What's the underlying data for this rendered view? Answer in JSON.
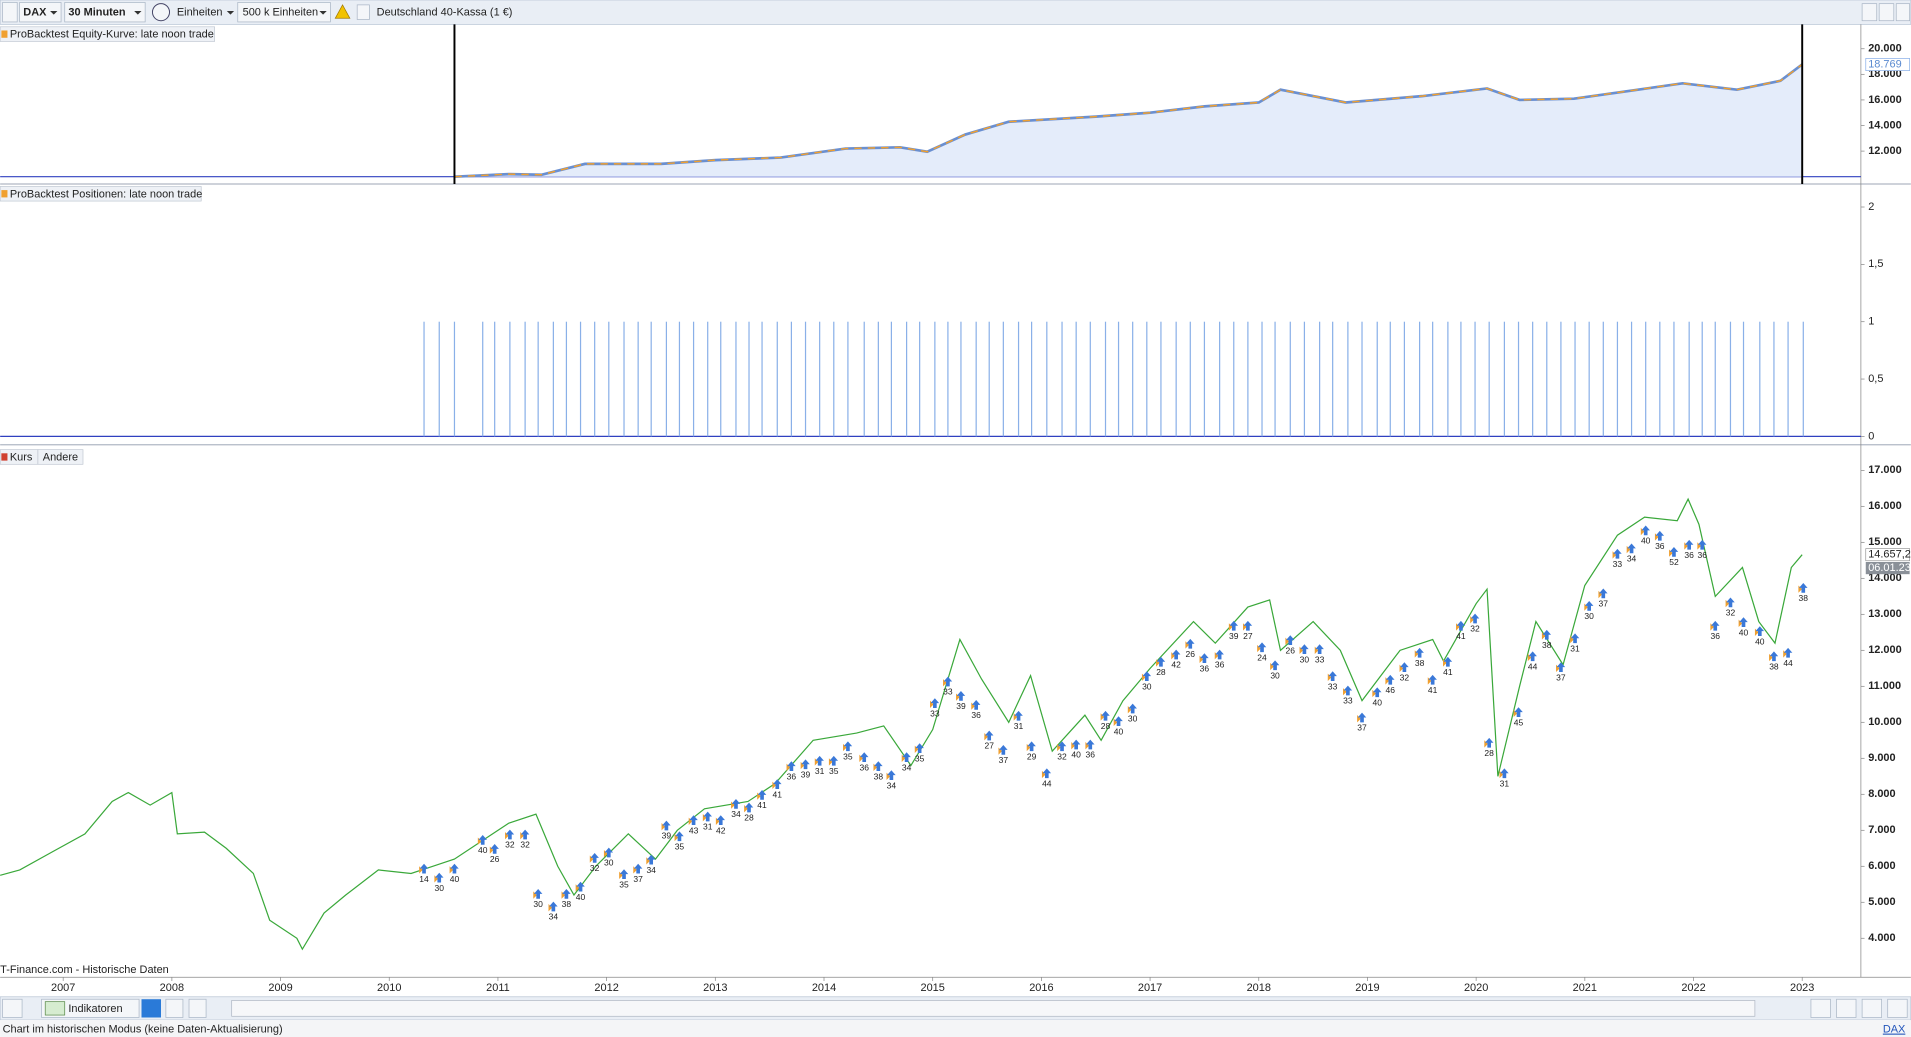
{
  "toolbar": {
    "symbol": "DAX",
    "interval": "30 Minuten",
    "units": "Einheiten",
    "amount": "500 k Einheiten",
    "instrument": "Deutschland 40-Kassa (1 €)"
  },
  "time_axis": {
    "xlim": [
      2006.42,
      2023.54
    ],
    "xticks": [
      2007,
      2008,
      2009,
      2010,
      2011,
      2012,
      2013,
      2014,
      2015,
      2016,
      2017,
      2018,
      2019,
      2020,
      2021,
      2022,
      2023
    ]
  },
  "chart_data": [
    {
      "type": "area",
      "title": "ProBacktest Equity-Kurve: late noon trade",
      "color": "#f0a030",
      "line2": "#6a8fd0",
      "fill": "#e4ecfa",
      "x": [
        2010.6,
        2011.1,
        2011.4,
        2011.8,
        2012.5,
        2013.0,
        2013.6,
        2014.2,
        2014.7,
        2014.95,
        2015.3,
        2015.7,
        2016.5,
        2017.0,
        2017.5,
        2018.0,
        2018.2,
        2018.8,
        2019.5,
        2020.1,
        2020.4,
        2020.9,
        2021.4,
        2021.9,
        2022.4,
        2022.8,
        2023.0
      ],
      "values": [
        10000,
        10200,
        10150,
        11000,
        11000,
        11300,
        11500,
        12200,
        12300,
        11950,
        13300,
        14300,
        14700,
        15000,
        15500,
        15800,
        16800,
        15800,
        16300,
        16900,
        16000,
        16100,
        16700,
        17300,
        16800,
        17500,
        18769
      ],
      "ylim": [
        9524,
        21905
      ],
      "yticks": [
        {
          "value": 12000,
          "label": "12.000"
        },
        {
          "value": 14000,
          "label": "14.000"
        },
        {
          "value": 16000,
          "label": "16.000"
        },
        {
          "value": 18000,
          "label": "18.000"
        },
        {
          "value": 20000,
          "label": "20.000"
        }
      ],
      "current": {
        "value": 18769,
        "label": "18.769"
      }
    },
    {
      "type": "bar",
      "title": "ProBacktest Positionen: late noon trade",
      "color": "#8ab0e8",
      "level": 1,
      "ylim": [
        -0.02,
        2.19
      ],
      "yticks": [
        0,
        {
          "value": 0.5,
          "label": "0,5"
        },
        1,
        {
          "value": 1.5,
          "label": "1,5"
        },
        2
      ]
    },
    {
      "type": "line",
      "title": "Kurs",
      "tab": "Andere",
      "color": "#3aa83a",
      "source": "T-Finance.com - Historische Daten",
      "x": [
        2006.42,
        2006.6,
        2006.9,
        2007.2,
        2007.45,
        2007.6,
        2007.8,
        2008.0,
        2008.05,
        2008.3,
        2008.5,
        2008.75,
        2008.9,
        2009.15,
        2009.2,
        2009.4,
        2009.6,
        2009.9,
        2010.2,
        2010.4,
        2010.6,
        2010.9,
        2011.1,
        2011.35,
        2011.55,
        2011.7,
        2011.9,
        2012.2,
        2012.45,
        2012.65,
        2012.9,
        2013.3,
        2013.55,
        2013.9,
        2014.3,
        2014.55,
        2014.8,
        2015.0,
        2015.25,
        2015.45,
        2015.7,
        2015.9,
        2016.1,
        2016.4,
        2016.55,
        2016.75,
        2017.0,
        2017.4,
        2017.6,
        2017.9,
        2018.1,
        2018.2,
        2018.5,
        2018.75,
        2018.95,
        2019.3,
        2019.6,
        2019.7,
        2020.0,
        2020.1,
        2020.2,
        2020.4,
        2020.55,
        2020.8,
        2021.0,
        2021.3,
        2021.55,
        2021.85,
        2021.95,
        2022.05,
        2022.2,
        2022.45,
        2022.6,
        2022.75,
        2022.9,
        2023.0
      ],
      "values": [
        5750,
        5900,
        6400,
        6900,
        7800,
        8050,
        7700,
        8050,
        6900,
        6950,
        6500,
        5800,
        4500,
        4000,
        3700,
        4700,
        5200,
        5900,
        5800,
        6000,
        6200,
        6800,
        7200,
        7450,
        6000,
        5200,
        6000,
        6900,
        6200,
        7000,
        7600,
        7800,
        8300,
        9500,
        9700,
        9900,
        8800,
        9800,
        12300,
        11200,
        10000,
        11300,
        9200,
        10200,
        9500,
        10600,
        11500,
        12800,
        12200,
        13200,
        13400,
        12000,
        12800,
        12000,
        10600,
        12000,
        12300,
        11700,
        13300,
        13700,
        8500,
        11000,
        12800,
        11600,
        13800,
        15200,
        15700,
        15600,
        16200,
        15500,
        13500,
        14300,
        12800,
        12200,
        14300,
        14657
      ],
      "ylim": [
        2984,
        17609
      ],
      "yticks": [
        {
          "value": 4000,
          "label": "4.000"
        },
        {
          "value": 5000,
          "label": "5.000"
        },
        {
          "value": 6000,
          "label": "6.000"
        },
        {
          "value": 7000,
          "label": "7.000"
        },
        {
          "value": 8000,
          "label": "8.000"
        },
        {
          "value": 9000,
          "label": "9.000"
        },
        {
          "value": 10000,
          "label": "10.000"
        },
        {
          "value": 11000,
          "label": "11.000"
        },
        {
          "value": 12000,
          "label": "12.000"
        },
        {
          "value": 13000,
          "label": "13.000"
        },
        {
          "value": 14000,
          "label": "14.000"
        },
        {
          "value": 15000,
          "label": "15.000"
        },
        {
          "value": 16000,
          "label": "16.000"
        },
        {
          "value": 17000,
          "label": "17.000"
        }
      ],
      "current": {
        "value": 14657.2,
        "label": "14.657,2",
        "date": "06.01.23"
      },
      "trades": {
        "t": [
          2010.32,
          2010.46,
          2010.6,
          2010.86,
          2010.97,
          2011.11,
          2011.25,
          2011.37,
          2011.51,
          2011.63,
          2011.76,
          2011.89,
          2012.02,
          2012.16,
          2012.29,
          2012.41,
          2012.55,
          2012.67,
          2012.8,
          2012.93,
          2013.05,
          2013.19,
          2013.31,
          2013.43,
          2013.57,
          2013.7,
          2013.83,
          2013.96,
          2014.09,
          2014.22,
          2014.37,
          2014.5,
          2014.62,
          2014.76,
          2014.88,
          2015.02,
          2015.14,
          2015.26,
          2015.4,
          2015.52,
          2015.65,
          2015.79,
          2015.91,
          2016.05,
          2016.19,
          2016.32,
          2016.45,
          2016.59,
          2016.71,
          2016.84,
          2016.97,
          2017.1,
          2017.24,
          2017.37,
          2017.5,
          2017.64,
          2017.77,
          2017.9,
          2018.03,
          2018.15,
          2018.29,
          2018.42,
          2018.56,
          2018.68,
          2018.82,
          2018.95,
          2019.09,
          2019.21,
          2019.34,
          2019.48,
          2019.6,
          2019.74,
          2019.86,
          2019.99,
          2020.12,
          2020.26,
          2020.39,
          2020.52,
          2020.65,
          2020.78,
          2020.91,
          2021.04,
          2021.17,
          2021.3,
          2021.43,
          2021.56,
          2021.69,
          2021.82,
          2021.96,
          2022.08,
          2022.2,
          2022.34,
          2022.46,
          2022.61,
          2022.74,
          2022.87,
          2023.01
        ],
        "price": [
          5900,
          5650,
          5900,
          6700,
          6450,
          6850,
          6850,
          5200,
          4850,
          5200,
          5400,
          6200,
          6350,
          5750,
          5900,
          6150,
          7100,
          6800,
          7250,
          7350,
          7250,
          7700,
          7600,
          7950,
          8250,
          8750,
          8800,
          8900,
          8900,
          9300,
          9000,
          8750,
          8500,
          9000,
          9250,
          10500,
          11100,
          10700,
          10450,
          9600,
          9200,
          10150,
          9300,
          8550,
          9300,
          9350,
          9350,
          10150,
          10000,
          10350,
          11250,
          11650,
          11850,
          12150,
          11750,
          11850,
          12650,
          12650,
          12050,
          11550,
          12250,
          12000,
          12000,
          11250,
          10850,
          10100,
          10800,
          11150,
          11500,
          11900,
          11150,
          11650,
          12650,
          12850,
          9400,
          8550,
          10250,
          11800,
          12400,
          11500,
          12300,
          13200,
          13550,
          14650,
          14800,
          15300,
          15150,
          14700,
          14900,
          14900,
          12650,
          13300,
          12750,
          12500,
          11800,
          11900,
          13700
        ],
        "labels": [
          "14",
          "30",
          "40",
          "40",
          "26",
          "32",
          "32",
          "30",
          "34",
          "38",
          "40",
          "32",
          "30",
          "35",
          "37",
          "34",
          "39",
          "35",
          "43",
          "31",
          "42",
          "34",
          "28",
          "41",
          "41",
          "36",
          "39",
          "31",
          "35",
          "35",
          "36",
          "38",
          "34",
          "34",
          "35",
          "33",
          "33",
          "39",
          "36",
          "27",
          "37",
          "31",
          "29",
          "44",
          "32",
          "40",
          "36",
          "28",
          "40",
          "30",
          "30",
          "28",
          "42",
          "26",
          "36",
          "36",
          "39",
          "27",
          "24",
          "30",
          "26",
          "30",
          "33",
          "33",
          "33",
          "37",
          "40",
          "46",
          "32",
          "38",
          "41",
          "41",
          "41",
          "32",
          "28",
          "31",
          "45",
          "44",
          "38",
          "37",
          "31",
          "30",
          "37",
          "33",
          "34",
          "40",
          "36",
          "52",
          "36",
          "36",
          "36",
          "32",
          "40",
          "40",
          "38",
          "44",
          "38"
        ]
      }
    }
  ],
  "footer": {
    "indicators": "Indikatoren",
    "symbol": "DAX",
    "status": "Chart im historischen Modus (keine Daten-Aktualisierung)"
  }
}
